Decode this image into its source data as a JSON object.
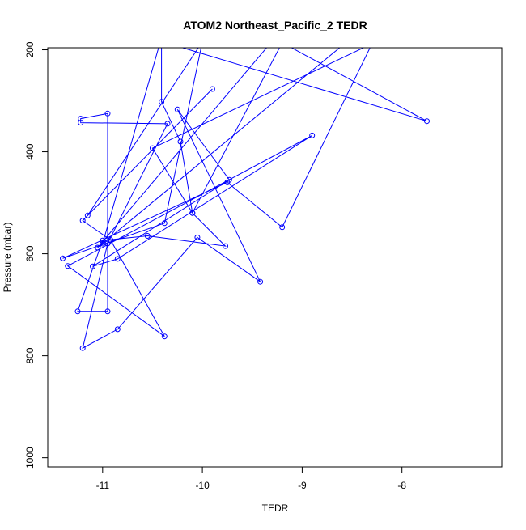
{
  "chart_data": {
    "type": "line",
    "title": "ATOM2 Northeast_Pacific_2 TEDR",
    "xlabel": "TEDR",
    "ylabel": "Pressure (mbar)",
    "xlim": [
      -11.55,
      -7.0
    ],
    "ylim": [
      1018,
      196
    ],
    "y_reversed": true,
    "x_ticks": [
      -11,
      -10,
      -9,
      -8
    ],
    "x_tick_labels": [
      "-11",
      "-10",
      "-9",
      "-8"
    ],
    "y_ticks": [
      200,
      400,
      600,
      800,
      1000
    ],
    "y_tick_labels": [
      "200",
      "400",
      "600",
      "800",
      "1000"
    ],
    "grid": false,
    "legend": "none",
    "series_color": "#0000ff",
    "series": [
      {
        "x": [
          -10.41,
          -10.41,
          -10.22,
          -10.1,
          -9.77,
          -10.55,
          -11.0,
          -11.25,
          -10.95,
          -10.95,
          -11.22,
          -11.22,
          -10.35,
          -10.95,
          -11.2,
          -10.85,
          -10.05,
          -9.42,
          -10.25,
          -9.73,
          -11.1,
          -10.85,
          -8.9,
          -11.35,
          -10.38,
          -10.92,
          -11.2,
          -9.9,
          -11.15,
          -10.0,
          -10.38,
          -11.4,
          -9.75,
          -9.2,
          -8.3,
          -10.5,
          -10.1,
          -9.2,
          -7.75,
          -10.42,
          -11.0,
          -8.55,
          -11.05,
          -9.3
        ],
        "y": [
          180,
          302,
          380,
          520,
          585,
          565,
          574,
          713,
          713,
          325,
          335,
          343,
          345,
          580,
          785,
          748,
          568,
          655,
          317,
          455,
          625,
          610,
          368,
          624,
          762,
          573,
          535,
          277,
          525,
          184,
          540,
          609,
          460,
          548,
          188,
          393,
          520,
          186,
          340,
          183,
          580,
          184,
          588,
          183
        ]
      }
    ]
  }
}
